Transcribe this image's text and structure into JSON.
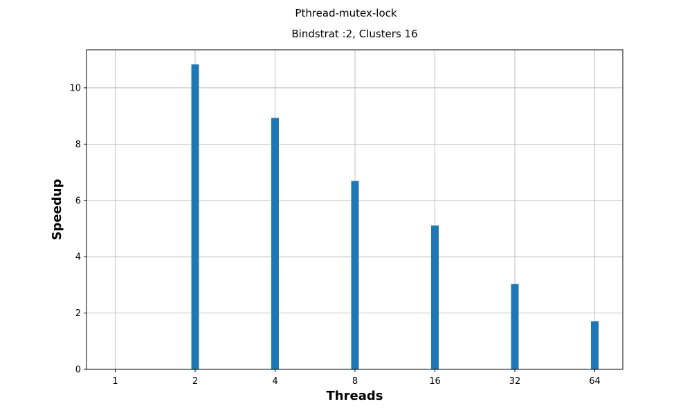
{
  "chart_data": {
    "type": "bar",
    "suptitle": "Pthread-mutex-lock",
    "title": "Bindstrat :2, Clusters 16",
    "xlabel": "Threads",
    "ylabel": "Speedup",
    "categories": [
      "1",
      "2",
      "4",
      "8",
      "16",
      "32",
      "64"
    ],
    "values": [
      0,
      10.83,
      8.93,
      6.69,
      5.11,
      3.03,
      1.71
    ],
    "ylim": [
      0,
      11.35
    ],
    "yticks": [
      0,
      2,
      4,
      6,
      8,
      10
    ],
    "grid": true,
    "legend": "none",
    "bar_color": "#1f77b4"
  }
}
